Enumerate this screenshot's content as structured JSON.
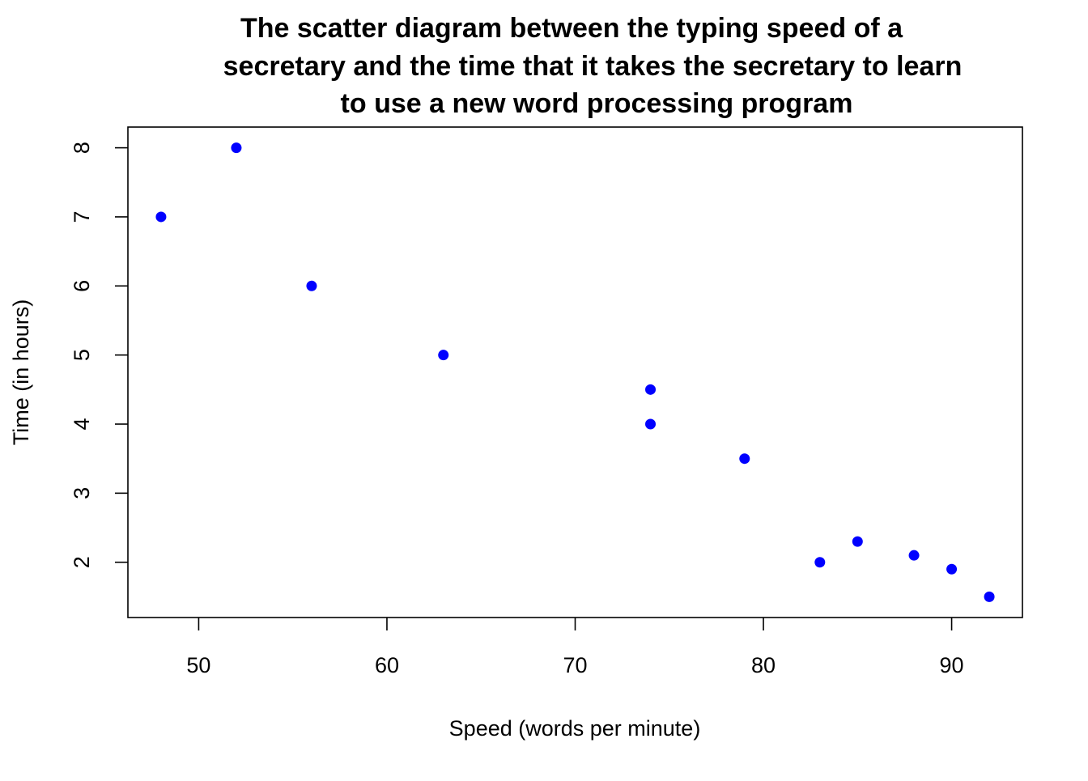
{
  "chart_data": {
    "type": "scatter",
    "title_lines": [
      "The scatter diagram between the typing speed of a",
      "secretary and the time that it takes the secretary to learn",
      "to use a new word processing program"
    ],
    "xlabel": "Speed (words per minute)",
    "ylabel": "Time (in hours)",
    "x_ticks": [
      "50",
      "60",
      "70",
      "80",
      "90"
    ],
    "y_ticks": [
      "2",
      "3",
      "4",
      "5",
      "6",
      "7",
      "8"
    ],
    "xlim": [
      46.24,
      93.76
    ],
    "ylim": [
      1.2,
      8.3
    ],
    "grid": false,
    "legend": "none",
    "point_color": "#0000ff",
    "points": [
      {
        "x": 48,
        "y": 7
      },
      {
        "x": 52,
        "y": 8
      },
      {
        "x": 56,
        "y": 6
      },
      {
        "x": 63,
        "y": 5
      },
      {
        "x": 74,
        "y": 4.5
      },
      {
        "x": 74,
        "y": 4
      },
      {
        "x": 79,
        "y": 3.5
      },
      {
        "x": 83,
        "y": 2
      },
      {
        "x": 85,
        "y": 2.3
      },
      {
        "x": 88,
        "y": 2.1
      },
      {
        "x": 90,
        "y": 1.9
      },
      {
        "x": 92,
        "y": 1.5
      }
    ]
  }
}
